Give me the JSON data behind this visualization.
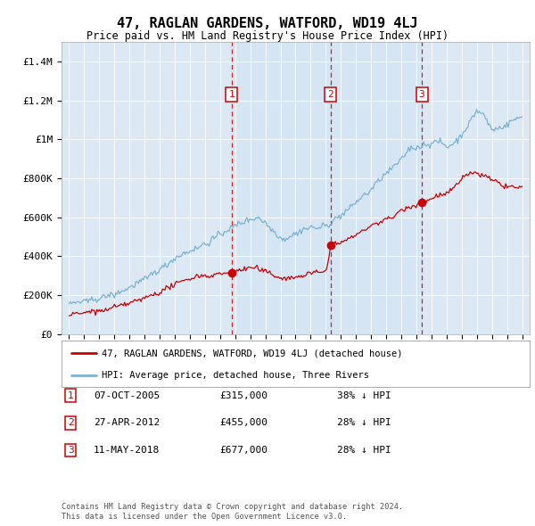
{
  "title": "47, RAGLAN GARDENS, WATFORD, WD19 4LJ",
  "subtitle": "Price paid vs. HM Land Registry's House Price Index (HPI)",
  "ylim": [
    0,
    1500000
  ],
  "yticks": [
    0,
    200000,
    400000,
    600000,
    800000,
    1000000,
    1200000,
    1400000
  ],
  "ytick_labels": [
    "£0",
    "£200K",
    "£400K",
    "£600K",
    "£800K",
    "£1M",
    "£1.2M",
    "£1.4M"
  ],
  "plot_bg_color": "#dce9f5",
  "hpi_color": "#7ab3d4",
  "price_color": "#cc0000",
  "transaction_dates": [
    2005.77,
    2012.33,
    2018.36
  ],
  "transaction_prices": [
    315000,
    455000,
    677000
  ],
  "transaction_labels": [
    "1",
    "2",
    "3"
  ],
  "legend_line1": "47, RAGLAN GARDENS, WATFORD, WD19 4LJ (detached house)",
  "legend_line2": "HPI: Average price, detached house, Three Rivers",
  "table_entries": [
    {
      "num": "1",
      "date": "07-OCT-2005",
      "price": "£315,000",
      "desc": "38% ↓ HPI"
    },
    {
      "num": "2",
      "date": "27-APR-2012",
      "price": "£455,000",
      "desc": "28% ↓ HPI"
    },
    {
      "num": "3",
      "date": "11-MAY-2018",
      "price": "£677,000",
      "desc": "28% ↓ HPI"
    }
  ],
  "footnote1": "Contains HM Land Registry data © Crown copyright and database right 2024.",
  "footnote2": "This data is licensed under the Open Government Licence v3.0.",
  "xmin": 1994.5,
  "xmax": 2025.5
}
